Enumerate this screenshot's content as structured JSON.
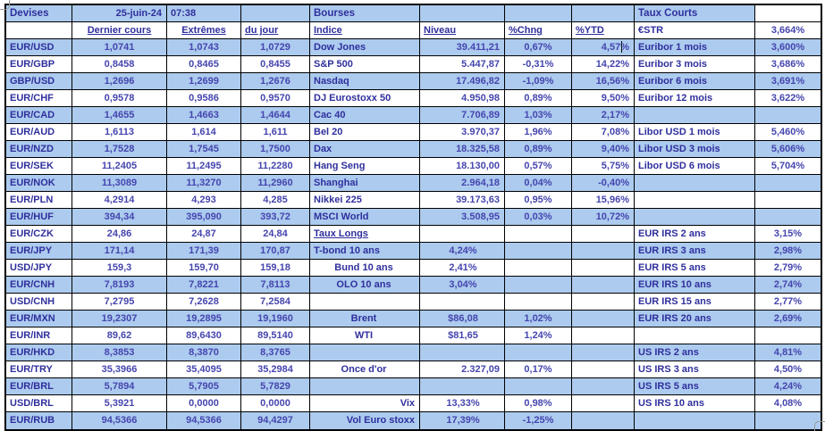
{
  "meta": {
    "date": "25-juin-24",
    "time": "07:38"
  },
  "colors": {
    "row_fill_blue": "#ACCBEE",
    "row_fill_white": "#FFFFFF",
    "label_text": "#2F2F9D",
    "value_text": "#4545AF",
    "grid_border": "#000000"
  },
  "devises": {
    "title": "Devises",
    "headers": {
      "last": "Dernier cours",
      "extremes": "Extrêmes",
      "day": "du jour"
    },
    "rows": [
      {
        "kind": "fx",
        "pair": "EUR/USD",
        "last": "1,0741",
        "high": "1,0743",
        "low": "1,0729"
      },
      {
        "kind": "fx",
        "pair": "EUR/GBP",
        "last": "0,8458",
        "high": "0,8465",
        "low": "0,8455"
      },
      {
        "kind": "fx",
        "pair": "GBP/USD",
        "last": "1,2696",
        "high": "1,2699",
        "low": "1,2676"
      },
      {
        "kind": "fx",
        "pair": "EUR/CHF",
        "last": "0,9578",
        "high": "0,9586",
        "low": "0,9570"
      },
      {
        "kind": "fx",
        "pair": "EUR/CAD",
        "last": "1,4655",
        "high": "1,4663",
        "low": "1,4644"
      },
      {
        "kind": "fx",
        "pair": "EUR/AUD",
        "last": "1,6113",
        "high": "1,614",
        "low": "1,611"
      },
      {
        "kind": "fx",
        "pair": "EUR/NZD",
        "last": "1,7528",
        "high": "1,7545",
        "low": "1,7500"
      },
      {
        "kind": "fx",
        "pair": "EUR/SEK",
        "last": "11,2405",
        "high": "11,2495",
        "low": "11,2280"
      },
      {
        "kind": "fx",
        "pair": "EUR/NOK",
        "last": "11,3089",
        "high": "11,3270",
        "low": "11,2960"
      },
      {
        "kind": "fx",
        "pair": "EUR/PLN",
        "last": "4,2914",
        "high": "4,293",
        "low": "4,285"
      },
      {
        "kind": "fx",
        "pair": "EUR/HUF",
        "last": "394,34",
        "high": "395,090",
        "low": "393,72"
      },
      {
        "kind": "fx",
        "pair": "EUR/CZK",
        "last": "24,86",
        "high": "24,87",
        "low": "24,84"
      },
      {
        "kind": "fx",
        "pair": "EUR/JPY",
        "last": "171,14",
        "high": "171,39",
        "low": "170,87"
      },
      {
        "kind": "fx",
        "pair": "USD/JPY",
        "last": "159,3",
        "high": "159,70",
        "low": "159,18"
      },
      {
        "kind": "fx",
        "pair": "EUR/CNH",
        "last": "7,8193",
        "high": "7,8221",
        "low": "7,8113"
      },
      {
        "kind": "fx",
        "pair": "USD/CNH",
        "last": "7,2795",
        "high": "7,2628",
        "low": "7,2584"
      },
      {
        "kind": "fx",
        "pair": "EUR/MXN",
        "last": "19,2307",
        "high": "19,2895",
        "low": "19,1960"
      },
      {
        "kind": "fx",
        "pair": "EUR/INR",
        "last": "89,62",
        "high": "89,6430",
        "low": "89,5140"
      },
      {
        "kind": "fx",
        "pair": "EUR/HKD",
        "last": "8,3853",
        "high": "8,3870",
        "low": "8,3765"
      },
      {
        "kind": "fx",
        "pair": "EUR/TRY",
        "last": "35,3966",
        "high": "35,4095",
        "low": "35,2984"
      },
      {
        "kind": "fx",
        "pair": "EUR/BRL",
        "last": "5,7894",
        "high": "5,7905",
        "low": "5,7829"
      },
      {
        "kind": "fx",
        "pair": "USD/BRL",
        "last": "5,3921",
        "high": "0,0000",
        "low": "0,0000"
      },
      {
        "kind": "fx",
        "pair": "EUR/RUB",
        "last": "94,5366",
        "high": "94,5366",
        "low": "94,4297"
      }
    ]
  },
  "bourses": {
    "title": "Bourses",
    "headers": {
      "index": "Indice",
      "level": "Niveau",
      "chng": "%Chng",
      "ytd": "%YTD"
    },
    "rows": [
      {
        "kind": "index",
        "name": "Dow Jones",
        "level": "39.411,21",
        "chng": "0,67%",
        "ytd": "4,57%"
      },
      {
        "kind": "index",
        "name": "S&P 500",
        "level": "5.447,87",
        "chng": "-0,31%",
        "ytd": "14,22%"
      },
      {
        "kind": "index",
        "name": "Nasdaq",
        "level": "17.496,82",
        "chng": "-1,09%",
        "ytd": "16,56%"
      },
      {
        "kind": "index",
        "name": "DJ Eurostoxx 50",
        "level": "4.950,98",
        "chng": "0,89%",
        "ytd": "9,50%"
      },
      {
        "kind": "index",
        "name": "Cac 40",
        "level": "7.706,89",
        "chng": "1,03%",
        "ytd": "2,17%"
      },
      {
        "kind": "index",
        "name": "Bel 20",
        "level": "3.970,37",
        "chng": "1,96%",
        "ytd": "7,08%"
      },
      {
        "kind": "index",
        "name": "Dax",
        "level": "18.325,58",
        "chng": "0,89%",
        "ytd": "9,40%"
      },
      {
        "kind": "index",
        "name": "Hang Seng",
        "level": "18.130,00",
        "chng": "0,57%",
        "ytd": "5,75%"
      },
      {
        "kind": "index",
        "name": "Shanghai",
        "level": "2.964,18",
        "chng": "0,04%",
        "ytd": "-0,40%"
      },
      {
        "kind": "index",
        "name": "Nikkei 225",
        "level": "39.173,63",
        "chng": "0,95%",
        "ytd": "15,96%"
      },
      {
        "kind": "index",
        "name": "MSCI World",
        "level": "3.508,95",
        "chng": "0,03%",
        "ytd": "10,72%"
      },
      {
        "kind": "subheader",
        "name": "Taux Longs",
        "level": "",
        "chng": "",
        "ytd": ""
      },
      {
        "kind": "rate-left",
        "name": "T-bond 10 ans",
        "level": "4,24%",
        "chng": "",
        "ytd": ""
      },
      {
        "kind": "rate",
        "name": "Bund 10 ans",
        "level": "2,41%",
        "chng": "",
        "ytd": ""
      },
      {
        "kind": "rate",
        "name": "OLO 10 ans",
        "level": "3,04%",
        "chng": "",
        "ytd": ""
      },
      {
        "kind": "empty",
        "name": "",
        "level": "",
        "chng": "",
        "ytd": ""
      },
      {
        "kind": "commodity",
        "name": "Brent",
        "level": "$86,08",
        "chng": "1,02%",
        "ytd": ""
      },
      {
        "kind": "commodity",
        "name": "WTI",
        "level": "$81,65",
        "chng": "1,24%",
        "ytd": ""
      },
      {
        "kind": "empty",
        "name": "",
        "level": "",
        "chng": "",
        "ytd": ""
      },
      {
        "kind": "gold",
        "name": "Once d'or",
        "level": "2.327,09",
        "chng": "0,17%",
        "ytd": ""
      },
      {
        "kind": "empty",
        "name": "",
        "level": "",
        "chng": "",
        "ytd": ""
      },
      {
        "kind": "vol",
        "name": "Vix",
        "level": "13,33%",
        "chng": "0,98%",
        "ytd": ""
      },
      {
        "kind": "vol",
        "name": "Vol Euro stoxx",
        "level": "17,39%",
        "chng": "-1,25%",
        "ytd": ""
      }
    ]
  },
  "taux_courts": {
    "title": "Taux Courts",
    "estr_label": "€STR",
    "estr_value": "3,664%",
    "rows": [
      {
        "kind": "rate",
        "label": "Euribor 1 mois",
        "value": "3,600%"
      },
      {
        "kind": "rate",
        "label": "Euribor 3 mois",
        "value": "3,686%"
      },
      {
        "kind": "rate",
        "label": "Euribor 6 mois",
        "value": "3,691%"
      },
      {
        "kind": "rate",
        "label": "Euribor 12 mois",
        "value": "3,622%"
      },
      {
        "kind": "empty",
        "label": "",
        "value": ""
      },
      {
        "kind": "rate",
        "label": "Libor USD 1 mois",
        "value": "5,460%"
      },
      {
        "kind": "rate",
        "label": "Libor USD 3 mois",
        "value": "5,606%"
      },
      {
        "kind": "rate",
        "label": "Libor USD 6 mois",
        "value": "5,704%"
      },
      {
        "kind": "empty",
        "label": "",
        "value": ""
      },
      {
        "kind": "empty",
        "label": "",
        "value": ""
      },
      {
        "kind": "empty",
        "label": "",
        "value": ""
      },
      {
        "kind": "rate",
        "label": "EUR IRS 2 ans",
        "value": "3,15%"
      },
      {
        "kind": "rate",
        "label": "EUR IRS 3 ans",
        "value": "2,98%"
      },
      {
        "kind": "rate",
        "label": "EUR IRS 5 ans",
        "value": "2,79%"
      },
      {
        "kind": "rate",
        "label": "EUR IRS 10 ans",
        "value": "2,74%"
      },
      {
        "kind": "rate",
        "label": "EUR IRS 15 ans",
        "value": "2,77%"
      },
      {
        "kind": "rate",
        "label": "EUR IRS 20 ans",
        "value": "2,69%"
      },
      {
        "kind": "empty",
        "label": "",
        "value": ""
      },
      {
        "kind": "rate",
        "label": "US IRS 2 ans",
        "value": "4,81%"
      },
      {
        "kind": "rate",
        "label": "US IRS 3 ans",
        "value": "4,50%"
      },
      {
        "kind": "rate",
        "label": "US IRS 5 ans",
        "value": "4,24%"
      },
      {
        "kind": "rate",
        "label": "US IRS 10 ans",
        "value": "4,08%"
      },
      {
        "kind": "empty",
        "label": "",
        "value": ""
      }
    ]
  },
  "caret": {
    "cell": "Dow Jones %YTD",
    "after_text": "4,57"
  }
}
